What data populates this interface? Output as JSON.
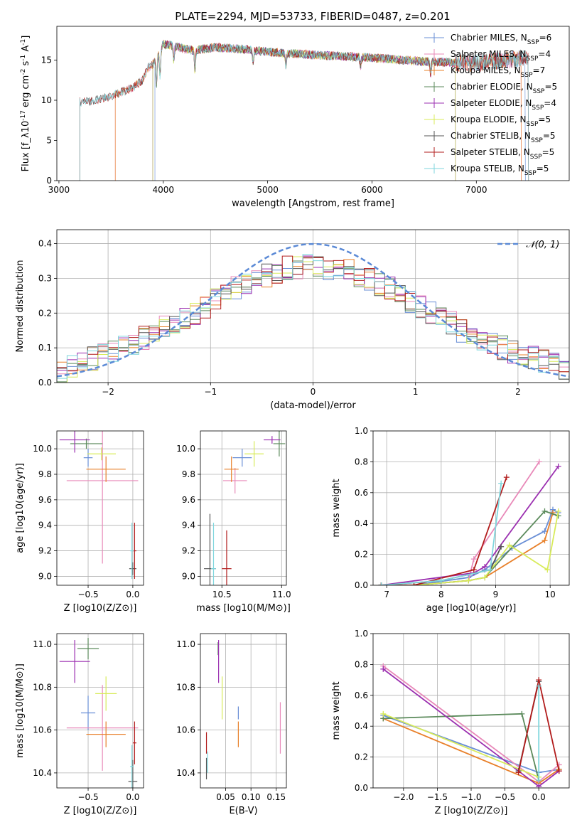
{
  "figure_title": "PLATE=2294, MJD=53733, FIBERID=0487, z=0.201",
  "series_colors": [
    "#6a8fd6",
    "#e889b9",
    "#e8802a",
    "#5b8a5b",
    "#9b2fb0",
    "#d8eb5a",
    "#555555",
    "#b21c1c",
    "#7fd6dd"
  ],
  "chart_data": [
    {
      "id": "spectrum",
      "type": "line",
      "title": "PLATE=2294, MJD=53733, FIBERID=0487, z=0.201",
      "xlabel": "wavelength [Angstrom, rest frame]",
      "ylabel": "Flux [f_λ10^-17 erg cm^-2 s^-1 A^-1]",
      "xlim": [
        2980,
        7890
      ],
      "ylim": [
        0,
        19.2
      ],
      "xticks": [
        3000,
        4000,
        5000,
        6000,
        7000
      ],
      "yticks": [
        0,
        5,
        10,
        15
      ],
      "grid": false,
      "legend_position": "upper-right",
      "legend": [
        {
          "label": "Chabrier MILES, N_SSP=6"
        },
        {
          "label": "Salpeter MILES, N_SSP=4"
        },
        {
          "label": "Kroupa MILES, N_SSP=7"
        },
        {
          "label": "Chabrier ELODIE, N_SSP=5"
        },
        {
          "label": "Salpeter ELODIE, N_SSP=4"
        },
        {
          "label": "Kroupa ELODIE, N_SSP=5"
        },
        {
          "label": "Chabrier STELIB, N_SSP=5"
        },
        {
          "label": "Salpeter STELIB, N_SSP=5"
        },
        {
          "label": "Kroupa STELIB, N_SSP=5"
        }
      ],
      "continuum_x": [
        3200,
        3300,
        3500,
        3700,
        3800,
        3850,
        3900,
        3950,
        4000,
        4100,
        4200,
        4300,
        4500,
        4800,
        5000,
        5500,
        6000,
        6500,
        7000,
        7500
      ],
      "continuum_y": [
        9.8,
        9.9,
        10.5,
        11.5,
        12.5,
        14.0,
        14.5,
        15.5,
        17.0,
        16.8,
        16.4,
        16.2,
        16.6,
        16.3,
        16.0,
        15.6,
        15.3,
        14.8,
        14.6,
        15.3
      ],
      "series_ranges": [
        {
          "x": [
            3920,
            7470
          ]
        },
        {
          "x": [
            3540,
            7430
          ]
        },
        {
          "x": [
            3540,
            7430
          ]
        },
        {
          "x": [
            3900,
            6800
          ]
        },
        {
          "x": [
            3900,
            6800
          ]
        },
        {
          "x": [
            3900,
            6800
          ]
        },
        {
          "x": [
            3200,
            7500
          ]
        },
        {
          "x": [
            3200,
            7500
          ]
        },
        {
          "x": [
            3200,
            7500
          ]
        }
      ]
    },
    {
      "id": "residuals",
      "type": "histogram",
      "xlabel": "(data-model)/error",
      "ylabel": "Normed distribution",
      "xlim": [
        -2.5,
        2.5
      ],
      "ylim": [
        0,
        0.44
      ],
      "xticks": [
        -2,
        -1,
        0,
        1,
        2
      ],
      "yticks": [
        0.0,
        0.1,
        0.2,
        0.3,
        0.4
      ],
      "grid": true,
      "legend_position": "upper-right",
      "reference_label": "𝒩(0, 1)",
      "reference_curve": "normal(0,1)",
      "bins": {
        "start": -2.5,
        "width": 0.1,
        "count": 50
      },
      "envelope": [
        0.03,
        0.05,
        0.06,
        0.07,
        0.08,
        0.09,
        0.1,
        0.11,
        0.13,
        0.14,
        0.16,
        0.17,
        0.19,
        0.2,
        0.22,
        0.24,
        0.25,
        0.27,
        0.28,
        0.3,
        0.31,
        0.32,
        0.33,
        0.33,
        0.34,
        0.34,
        0.33,
        0.33,
        0.32,
        0.31,
        0.3,
        0.28,
        0.27,
        0.25,
        0.23,
        0.22,
        0.2,
        0.18,
        0.17,
        0.15,
        0.14,
        0.12,
        0.11,
        0.1,
        0.09,
        0.08,
        0.07,
        0.06,
        0.05,
        0.04
      ]
    },
    {
      "id": "age-vs-z",
      "type": "errorbar",
      "xlabel": "Z [log10(Z/Z⊙)]",
      "ylabel": "age [log10(age/yr)]",
      "xlim": [
        -0.85,
        0.12
      ],
      "ylim": [
        8.93,
        10.14
      ],
      "xticks": [
        -0.5,
        0.0
      ],
      "yticks": [
        9.0,
        9.2,
        9.4,
        9.6,
        9.8,
        10.0
      ],
      "grid": true,
      "points": [
        {
          "series": 0,
          "x": -0.5,
          "xerr": 0.05,
          "y": 9.93,
          "yerr": 0.07
        },
        {
          "series": 1,
          "x": -0.34,
          "xerr": 0.4,
          "y": 9.75,
          "yerr": 0.65
        },
        {
          "series": 2,
          "x": -0.3,
          "xerr": 0.22,
          "y": 9.84,
          "yerr": 0.1
        },
        {
          "series": 3,
          "x": -0.52,
          "xerr": 0.18,
          "y": 10.04,
          "yerr": 0.04
        },
        {
          "series": 4,
          "x": -0.65,
          "xerr": 0.17,
          "y": 10.07,
          "yerr": 0.1
        },
        {
          "series": 5,
          "x": -0.35,
          "xerr": 0.16,
          "y": 9.96,
          "yerr": 0.05
        },
        {
          "series": 6,
          "x": 0.0,
          "xerr": 0.04,
          "y": 9.06,
          "yerr": 0.05
        },
        {
          "series": 7,
          "x": 0.02,
          "xerr": 0.02,
          "y": 9.2,
          "yerr": 0.22
        },
        {
          "series": 8,
          "x": -0.01,
          "xerr": 0.02,
          "y": 9.2,
          "yerr": 0.22
        }
      ]
    },
    {
      "id": "age-vs-mass",
      "type": "errorbar",
      "xlabel": "mass [log10(M/M⊙)]",
      "ylabel": "",
      "xlim": [
        10.32,
        11.04
      ],
      "ylim": [
        8.93,
        10.14
      ],
      "xticks": [
        10.5,
        11.0
      ],
      "yticks": [
        9.0,
        9.2,
        9.4,
        9.6,
        9.8,
        10.0
      ],
      "grid": true,
      "points": [
        {
          "series": 0,
          "x": 10.67,
          "xerr": 0.08,
          "y": 9.93,
          "yerr": 0.07
        },
        {
          "series": 1,
          "x": 10.61,
          "xerr": 0.1,
          "y": 9.75,
          "yerr": 0.1
        },
        {
          "series": 2,
          "x": 10.58,
          "xerr": 0.06,
          "y": 9.84,
          "yerr": 0.1
        },
        {
          "series": 3,
          "x": 10.98,
          "xerr": 0.05,
          "y": 10.04,
          "yerr": 0.1
        },
        {
          "series": 4,
          "x": 10.92,
          "xerr": 0.07,
          "y": 10.07,
          "yerr": 0.03
        },
        {
          "series": 5,
          "x": 10.77,
          "xerr": 0.08,
          "y": 9.96,
          "yerr": 0.1
        },
        {
          "series": 6,
          "x": 10.4,
          "xerr": 0.05,
          "y": 9.06,
          "yerr": 0.43
        },
        {
          "series": 7,
          "x": 10.54,
          "xerr": 0.04,
          "y": 9.06,
          "yerr": 0.3
        },
        {
          "series": 8,
          "x": 10.43,
          "xerr": 0.02,
          "y": 9.06,
          "yerr": 0.36
        }
      ]
    },
    {
      "id": "mass-weight-vs-age",
      "type": "line",
      "xlabel": "age [log10(age/yr)]",
      "ylabel": "mass weight",
      "xlim": [
        6.75,
        10.35
      ],
      "ylim": [
        0.0,
        1.0
      ],
      "xticks": [
        7,
        8,
        9,
        10
      ],
      "yticks": [
        0.0,
        0.2,
        0.4,
        0.6,
        0.8,
        1.0
      ],
      "grid": true,
      "series": [
        {
          "x": [
            6.9,
            7.5,
            8.5,
            8.8,
            9.3,
            9.9,
            10.05,
            10.15
          ],
          "y": [
            0.0,
            0.0,
            0.05,
            0.1,
            0.24,
            0.35,
            0.49,
            0.47
          ]
        },
        {
          "x": [
            6.9,
            7.5,
            8.5,
            8.6,
            9.8
          ],
          "y": [
            0.0,
            0.0,
            0.03,
            0.17,
            0.8
          ]
        },
        {
          "x": [
            6.9,
            7.5,
            8.5,
            8.8,
            9.9,
            10.05
          ],
          "y": [
            0.0,
            0.0,
            0.03,
            0.05,
            0.29,
            0.47
          ]
        },
        {
          "x": [
            6.9,
            7.5,
            8.5,
            8.8,
            9.9,
            10.15
          ],
          "y": [
            0.0,
            0.0,
            0.03,
            0.05,
            0.48,
            0.45
          ]
        },
        {
          "x": [
            6.9,
            8.6,
            8.8,
            10.15
          ],
          "y": [
            0.0,
            0.08,
            0.12,
            0.77
          ]
        },
        {
          "x": [
            6.9,
            7.5,
            8.5,
            8.8,
            9.25,
            9.95,
            10.15
          ],
          "y": [
            0.0,
            0.0,
            0.03,
            0.05,
            0.26,
            0.1,
            0.48
          ]
        },
        {
          "x": [
            6.9,
            8.0,
            8.9,
            9.1
          ],
          "y": [
            0.0,
            0.03,
            0.1,
            0.25
          ]
        },
        {
          "x": [
            6.9,
            7.5,
            8.6,
            9.2
          ],
          "y": [
            0.0,
            0.0,
            0.1,
            0.7
          ]
        },
        {
          "x": [
            6.9,
            8.0,
            8.9,
            9.1
          ],
          "y": [
            0.0,
            0.03,
            0.1,
            0.66
          ]
        }
      ]
    },
    {
      "id": "mass-vs-z",
      "type": "errorbar",
      "xlabel": "Z [log10(Z/Z⊙)]",
      "ylabel": "mass [log10(M/M⊙)]",
      "xlim": [
        -0.85,
        0.12
      ],
      "ylim": [
        10.33,
        11.05
      ],
      "xticks": [
        -0.5,
        0.0
      ],
      "yticks": [
        10.4,
        10.6,
        10.8,
        11.0
      ],
      "grid": true,
      "points": [
        {
          "series": 0,
          "x": -0.5,
          "xerr": 0.08,
          "y": 10.68,
          "yerr": 0.08
        },
        {
          "series": 1,
          "x": -0.34,
          "xerr": 0.4,
          "y": 10.61,
          "yerr": 0.2
        },
        {
          "series": 2,
          "x": -0.3,
          "xerr": 0.22,
          "y": 10.58,
          "yerr": 0.06
        },
        {
          "series": 3,
          "x": -0.5,
          "xerr": 0.12,
          "y": 10.98,
          "yerr": 0.05
        },
        {
          "series": 4,
          "x": -0.65,
          "xerr": 0.17,
          "y": 10.92,
          "yerr": 0.1
        },
        {
          "series": 5,
          "x": -0.3,
          "xerr": 0.12,
          "y": 10.77,
          "yerr": 0.08
        },
        {
          "series": 6,
          "x": 0.0,
          "xerr": 0.05,
          "y": 10.36,
          "yerr": 0.1
        },
        {
          "series": 7,
          "x": 0.02,
          "xerr": 0.02,
          "y": 10.54,
          "yerr": 0.1
        },
        {
          "series": 8,
          "x": -0.01,
          "xerr": 0.02,
          "y": 10.43,
          "yerr": 0.1
        }
      ]
    },
    {
      "id": "mass-vs-ebv",
      "type": "errorbar",
      "xlabel": "E(B-V)",
      "ylabel": "",
      "xlim": [
        0.0,
        0.17
      ],
      "ylim": [
        10.33,
        11.05
      ],
      "xticks": [
        0.05,
        0.1,
        0.15
      ],
      "yticks": [
        10.4,
        10.6,
        10.8,
        11.0
      ],
      "grid": true,
      "points": [
        {
          "series": 0,
          "x": 0.075,
          "xerr": 0,
          "y": 10.68,
          "yerr": 0.03
        },
        {
          "series": 1,
          "x": 0.158,
          "xerr": 0,
          "y": 10.61,
          "yerr": 0.12
        },
        {
          "series": 2,
          "x": 0.075,
          "xerr": 0,
          "y": 10.58,
          "yerr": 0.06
        },
        {
          "series": 3,
          "x": 0.035,
          "xerr": 0,
          "y": 10.98,
          "yerr": 0.03
        },
        {
          "series": 4,
          "x": 0.036,
          "xerr": 0,
          "y": 10.92,
          "yerr": 0.1
        },
        {
          "series": 5,
          "x": 0.043,
          "xerr": 0,
          "y": 10.75,
          "yerr": 0.1
        },
        {
          "series": 6,
          "x": 0.012,
          "xerr": 0,
          "y": 10.42,
          "yerr": 0.05
        },
        {
          "series": 7,
          "x": 0.012,
          "xerr": 0,
          "y": 10.54,
          "yerr": 0.05
        },
        {
          "series": 8,
          "x": 0.014,
          "xerr": 0,
          "y": 10.45,
          "yerr": 0.05
        }
      ]
    },
    {
      "id": "mass-weight-vs-z",
      "type": "line",
      "xlabel": "Z [log10(Z/Z⊙)]",
      "ylabel": "mass weight",
      "xlim": [
        -2.45,
        0.45
      ],
      "ylim": [
        0.0,
        1.0
      ],
      "xticks": [
        -2.0,
        -1.5,
        -1.0,
        -0.5,
        0.0
      ],
      "yticks": [
        0.0,
        0.2,
        0.4,
        0.6,
        0.8,
        1.0
      ],
      "grid": true,
      "series": [
        {
          "x": [
            -2.3,
            0.0,
            0.3
          ],
          "y": [
            0.47,
            0.1,
            0.12
          ]
        },
        {
          "x": [
            -2.3,
            0.0,
            0.3
          ],
          "y": [
            0.79,
            0.04,
            0.15
          ]
        },
        {
          "x": [
            -2.3,
            0.0,
            0.3
          ],
          "y": [
            0.45,
            0.03,
            0.12
          ]
        },
        {
          "x": [
            -2.3,
            -0.25,
            0.0
          ],
          "y": [
            0.45,
            0.48,
            0.05
          ]
        },
        {
          "x": [
            -2.3,
            0.0,
            0.3
          ],
          "y": [
            0.77,
            0.01,
            0.11
          ]
        },
        {
          "x": [
            -2.3,
            0.0
          ],
          "y": [
            0.48,
            0.07
          ]
        },
        {
          "x": [
            -0.3,
            0.0
          ],
          "y": [
            0.11,
            0.69
          ]
        },
        {
          "x": [
            -0.3,
            0.0,
            0.3
          ],
          "y": [
            0.1,
            0.7,
            0.11
          ]
        },
        {
          "x": [
            0.0,
            0.0
          ],
          "y": [
            0.05,
            0.66
          ]
        }
      ]
    }
  ]
}
